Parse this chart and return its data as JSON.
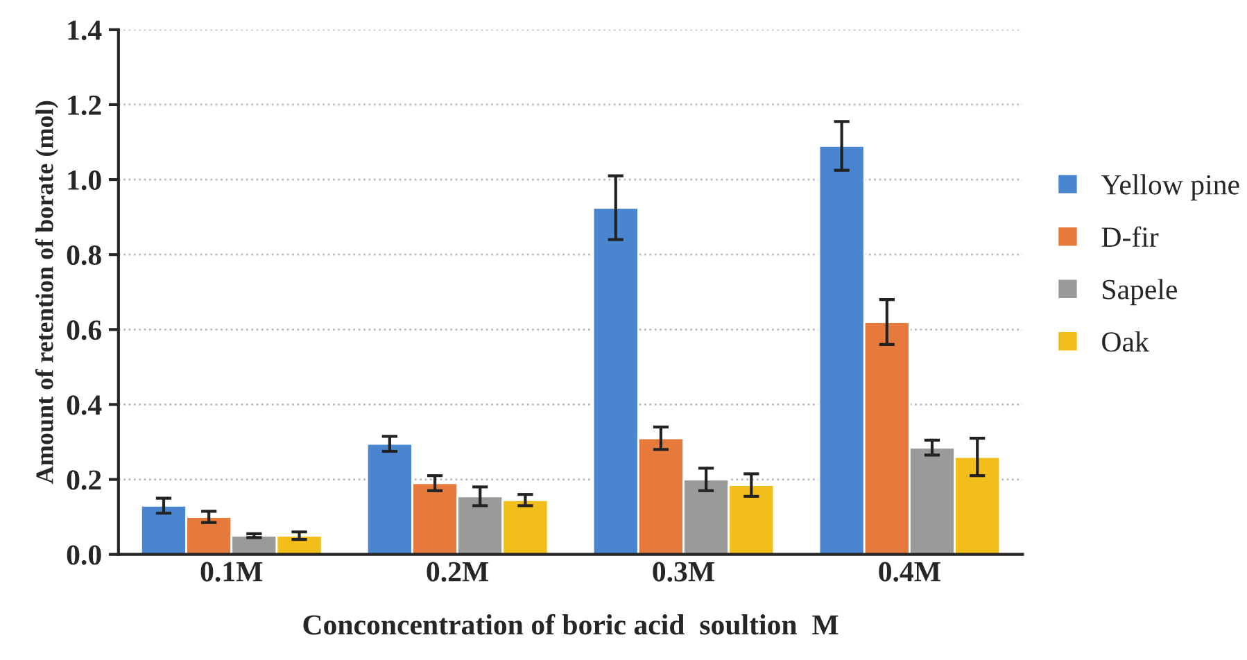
{
  "chart_data": {
    "type": "bar",
    "xlabel": "Conconcentration of boric acid  soultion  M",
    "ylabel": "Amount of retention of borate (mol)",
    "categories": [
      "0.1M",
      "0.2M",
      "0.3M",
      "0.4M"
    ],
    "series": [
      {
        "name": "Yellow pine",
        "color": "#4a86d0",
        "values": [
          0.13,
          0.295,
          0.925,
          1.09
        ],
        "errors": [
          0.02,
          0.02,
          0.085,
          0.065
        ]
      },
      {
        "name": "D-fir",
        "color": "#e57a3c",
        "values": [
          0.1,
          0.19,
          0.31,
          0.62
        ],
        "errors": [
          0.015,
          0.02,
          0.03,
          0.06
        ]
      },
      {
        "name": "Sapele",
        "color": "#9a9a9a",
        "values": [
          0.05,
          0.155,
          0.2,
          0.285
        ],
        "errors": [
          0.005,
          0.025,
          0.03,
          0.02
        ]
      },
      {
        "name": "Oak",
        "color": "#f2be1c",
        "values": [
          0.05,
          0.145,
          0.185,
          0.26
        ],
        "errors": [
          0.01,
          0.015,
          0.03,
          0.05
        ]
      }
    ],
    "ylim": [
      0,
      1.4
    ],
    "yticks": [
      {
        "value": 0,
        "label": "0.0"
      },
      0.2,
      0.4,
      0.6,
      0.8,
      {
        "value": 1.0,
        "label": "1.0"
      },
      1.2,
      1.4
    ],
    "grid": "y",
    "legend": "right"
  }
}
